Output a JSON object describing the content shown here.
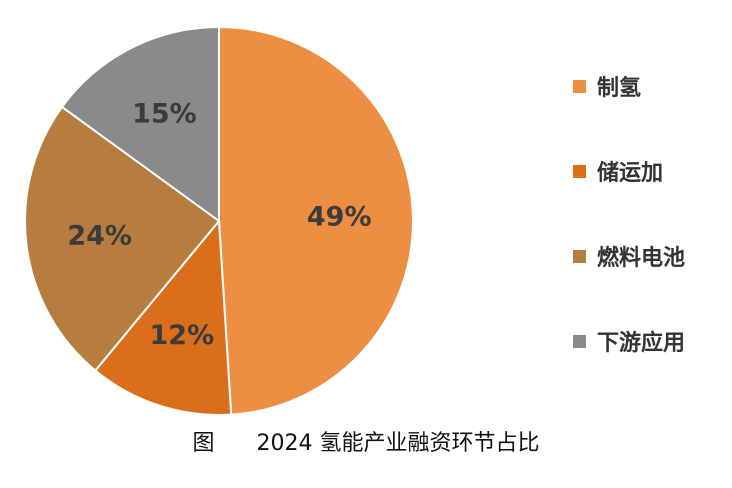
{
  "chart_data": {
    "type": "pie",
    "title": "",
    "slices": [
      {
        "label": "制氢",
        "value": 49,
        "display": "49%",
        "color": "#EC8F42"
      },
      {
        "label": "储运加",
        "value": 12,
        "display": "12%",
        "color": "#DB6E1A"
      },
      {
        "label": "燃料电池",
        "value": 24,
        "display": "24%",
        "color": "#B77D3F"
      },
      {
        "label": "下游应用",
        "value": 15,
        "display": "15%",
        "color": "#8A8A8A"
      }
    ],
    "legend_position": "right"
  },
  "caption": {
    "prefix": "图",
    "text": "2024 氢能产业融资环节占比"
  }
}
